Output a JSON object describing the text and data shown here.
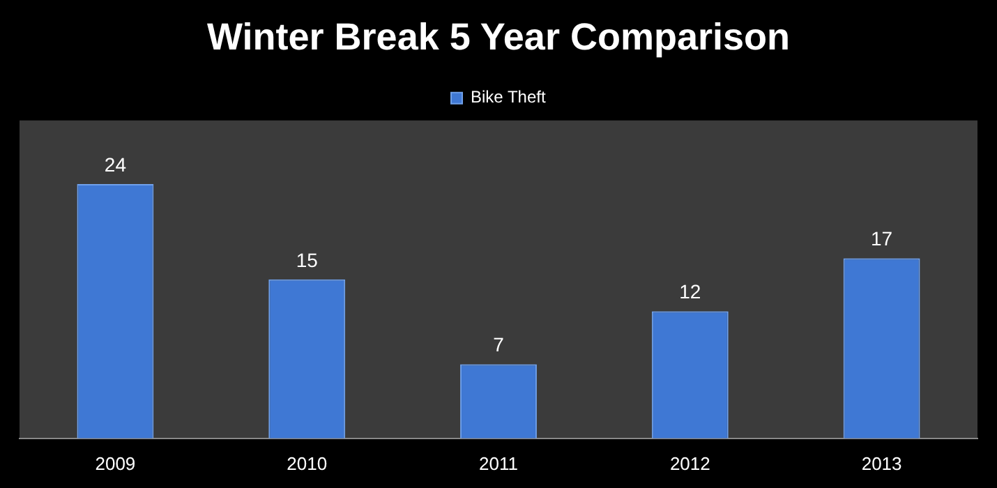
{
  "chart_data": {
    "type": "bar",
    "title": "Winter Break 5 Year Comparison",
    "categories": [
      "2009",
      "2010",
      "2011",
      "2012",
      "2013"
    ],
    "series": [
      {
        "name": "Bike Theft",
        "color": "#3f78d4",
        "values": [
          24,
          15,
          7,
          12,
          17
        ]
      }
    ],
    "data_labels": true,
    "legend": "top",
    "grid": false,
    "tick_labels": "x"
  }
}
